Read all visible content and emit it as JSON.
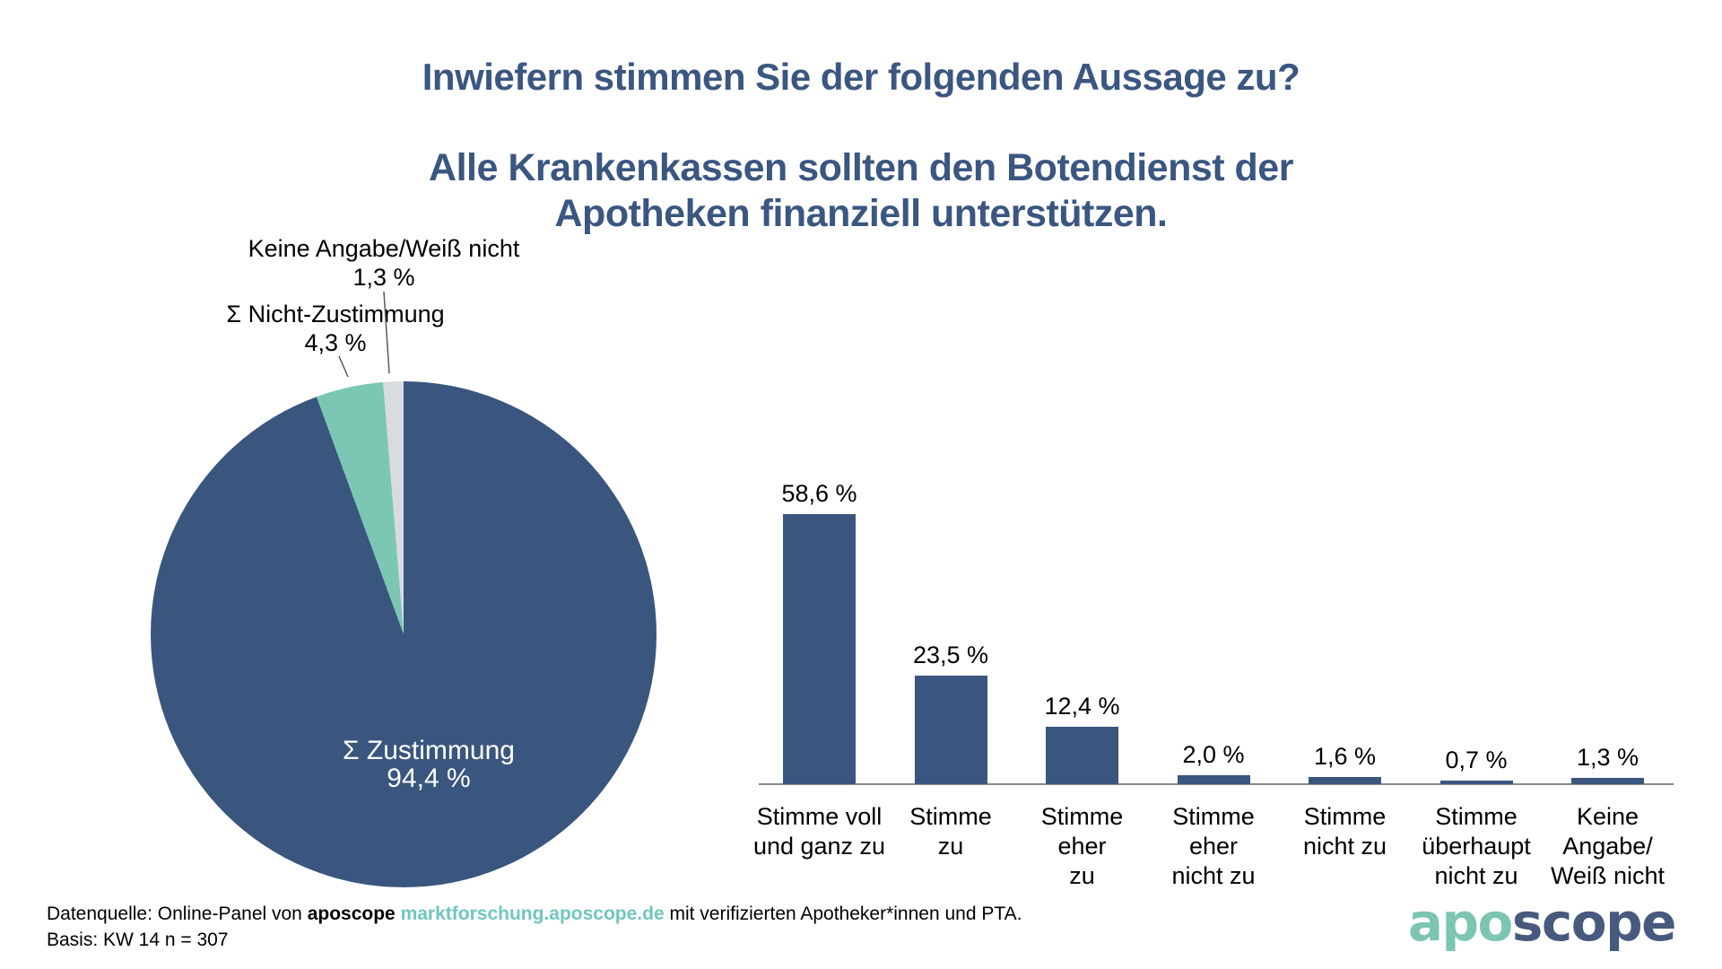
{
  "titles": {
    "question": "Inwiefern stimmen Sie der folgenden Aussage zu?",
    "statement_line1": "Alle Krankenkassen sollten den Botendienst der",
    "statement_line2": "Apotheken finanziell unterstützen."
  },
  "colors": {
    "dark_blue": "#3A567F",
    "teal": "#7BC7B4",
    "light_gray": "#D8DBE0",
    "title_blue": "#3A5681",
    "axis_gray": "#8A8A8A",
    "leader_gray": "#595959",
    "footer_link_teal": "#6FC7BD",
    "logo_teal": "#7CC5B2",
    "logo_blue": "#475A7E"
  },
  "chart_data": [
    {
      "type": "pie",
      "start_angle_deg": 0,
      "direction": "clockwise",
      "slices": [
        {
          "label": "Σ Zustimmung",
          "value": 94.4,
          "value_label": "94,4 %",
          "color_key": "dark_blue",
          "label_position": "inside"
        },
        {
          "label": "Σ Nicht-Zustimmung",
          "value": 4.3,
          "value_label": "4,3 %",
          "color_key": "teal",
          "label_position": "outside"
        },
        {
          "label": "Keine Angabe/Weiß nicht",
          "value": 1.3,
          "value_label": "1,3 %",
          "color_key": "light_gray",
          "label_position": "outside"
        }
      ]
    },
    {
      "type": "bar",
      "categories": [
        "Stimme voll\nund ganz zu",
        "Stimme\nzu",
        "Stimme\neher\nzu",
        "Stimme\neher\nnicht zu",
        "Stimme\nnicht zu",
        "Stimme\nüberhaupt\nnicht zu",
        "Keine Angabe/\nWeiß nicht"
      ],
      "values": [
        58.6,
        23.5,
        12.4,
        2.0,
        1.6,
        0.7,
        1.3
      ],
      "value_labels": [
        "58,6 %",
        "23,5 %",
        "12,4 %",
        "2,0 %",
        "1,6 %",
        "0,7 %",
        "1,3 %"
      ],
      "ylim": [
        0,
        60
      ],
      "grid": false,
      "legend": false,
      "xlabel": "",
      "ylabel": ""
    }
  ],
  "footer": {
    "line1_prefix": "Datenquelle: Online-Panel von ",
    "line1_brand": "aposcope",
    "line1_space": " ",
    "line1_link": "marktforschung.aposcope.de",
    "line1_suffix": " mit verifizierten Apotheker*innen und PTA.",
    "line2": "Basis: KW 14 n = 307"
  },
  "logo": {
    "part1": "apo",
    "part2": "scope"
  }
}
